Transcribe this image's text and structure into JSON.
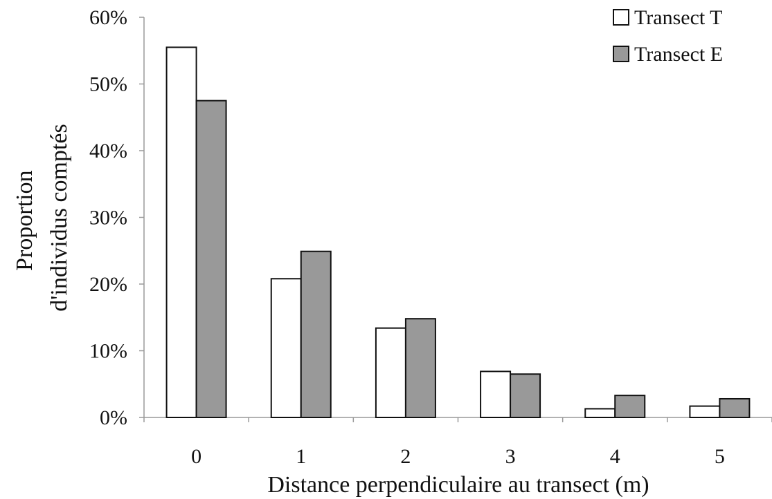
{
  "chart_data": {
    "type": "bar",
    "title": "",
    "xlabel": "Distance perpendiculaire au transect (m)",
    "ylabel_lines": [
      "Proportion",
      "d'individus comptés"
    ],
    "categories": [
      "0",
      "1",
      "2",
      "3",
      "4",
      "5"
    ],
    "series": [
      {
        "name": "Transect T",
        "values": [
          55.5,
          20.8,
          13.4,
          6.9,
          1.3,
          1.7
        ],
        "color": "#ffffff"
      },
      {
        "name": "Transect E",
        "values": [
          47.5,
          24.9,
          14.8,
          6.5,
          3.3,
          2.8
        ],
        "color": "#999999"
      }
    ],
    "ylim": [
      0,
      60
    ],
    "yticks": [
      0,
      10,
      20,
      30,
      40,
      50,
      60
    ],
    "ytick_labels": [
      "0%",
      "10%",
      "20%",
      "30%",
      "40%",
      "50%",
      "60%"
    ],
    "grid": false,
    "legend_position": "top-right"
  }
}
